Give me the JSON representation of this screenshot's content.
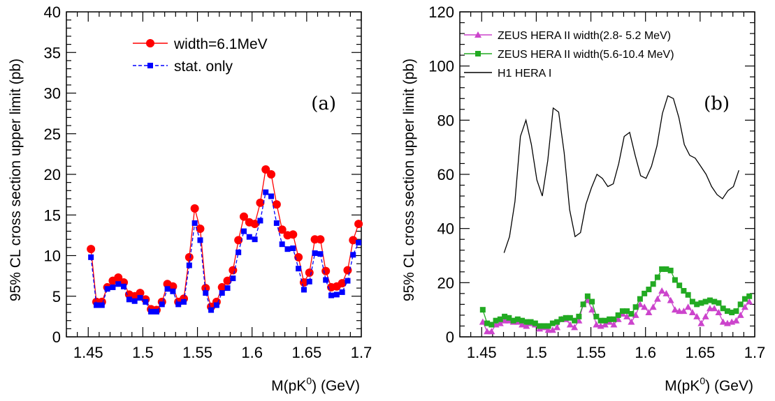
{
  "chart_data": [
    {
      "type": "line",
      "panel_label": "(a)",
      "xlabel_main": "M(pK",
      "xlabel_sup": "0",
      "xlabel_tail": ") (GeV)",
      "ylabel": "95% CL cross section upper limit (pb)",
      "xlim": [
        1.43,
        1.7
      ],
      "ylim": [
        0,
        40
      ],
      "xticks": [
        1.45,
        1.5,
        1.55,
        1.6,
        1.65,
        1.7
      ],
      "xtick_labels": [
        "1.45",
        "1.5",
        "1.55",
        "1.6",
        "1.65",
        "1.7"
      ],
      "yticks": [
        0,
        5,
        10,
        15,
        20,
        25,
        30,
        35,
        40
      ],
      "ytick_labels": [
        "0",
        "5",
        "10",
        "15",
        "20",
        "25",
        "30",
        "35",
        "40"
      ],
      "legend_position": "top-center",
      "series": [
        {
          "name": "width=6.1MeV",
          "color": "#ff0000",
          "marker": "circle",
          "line": "solid",
          "x": [
            1.4525,
            1.4575,
            1.4625,
            1.4675,
            1.4725,
            1.4775,
            1.4825,
            1.4875,
            1.4925,
            1.4975,
            1.5025,
            1.5075,
            1.5125,
            1.5175,
            1.5225,
            1.5275,
            1.5325,
            1.5375,
            1.5425,
            1.5475,
            1.5525,
            1.5575,
            1.5625,
            1.5675,
            1.5725,
            1.5775,
            1.5825,
            1.5875,
            1.5925,
            1.5975,
            1.6025,
            1.6075,
            1.6125,
            1.6175,
            1.6225,
            1.6275,
            1.6325,
            1.6375,
            1.6425,
            1.6475,
            1.6525,
            1.6575,
            1.6625,
            1.6675,
            1.6725,
            1.6775,
            1.6825,
            1.6875,
            1.6925,
            1.6975
          ],
          "y": [
            10.8,
            4.3,
            4.3,
            6.1,
            6.9,
            7.3,
            6.7,
            5.2,
            5.0,
            5.4,
            4.6,
            3.4,
            3.3,
            4.3,
            6.5,
            6.2,
            4.3,
            4.7,
            9.8,
            15.8,
            13.3,
            6.0,
            3.7,
            4.3,
            6.1,
            6.9,
            8.2,
            11.9,
            14.8,
            14.1,
            13.9,
            16.5,
            20.6,
            20.0,
            16.3,
            13.2,
            12.5,
            12.6,
            9.8,
            6.7,
            7.9,
            12.0,
            12.0,
            8.1,
            6.1,
            6.2,
            6.6,
            8.2,
            11.9,
            13.9
          ]
        },
        {
          "name": "stat. only",
          "color": "#0000ff",
          "marker": "square",
          "line": "dashed",
          "x": [
            1.4525,
            1.4575,
            1.4625,
            1.4675,
            1.4725,
            1.4775,
            1.4825,
            1.4875,
            1.4925,
            1.4975,
            1.5025,
            1.5075,
            1.5125,
            1.5175,
            1.5225,
            1.5275,
            1.5325,
            1.5375,
            1.5425,
            1.5475,
            1.5525,
            1.5575,
            1.5625,
            1.5675,
            1.5725,
            1.5775,
            1.5825,
            1.5875,
            1.5925,
            1.5975,
            1.6025,
            1.6075,
            1.6125,
            1.6175,
            1.6225,
            1.6275,
            1.6325,
            1.6375,
            1.6425,
            1.6475,
            1.6525,
            1.6575,
            1.6625,
            1.6675,
            1.6725,
            1.6775,
            1.6825,
            1.6875,
            1.6925,
            1.6975
          ],
          "y": [
            9.8,
            3.9,
            3.9,
            5.9,
            6.1,
            6.5,
            6.2,
            4.6,
            4.4,
            4.8,
            4.3,
            3.1,
            3.1,
            4.0,
            5.9,
            5.6,
            4.0,
            4.3,
            8.8,
            14.0,
            11.9,
            5.4,
            3.3,
            3.9,
            5.4,
            6.0,
            7.2,
            10.4,
            13.0,
            12.3,
            12.0,
            14.3,
            17.8,
            17.3,
            14.0,
            11.4,
            10.8,
            10.9,
            8.4,
            5.8,
            6.8,
            10.3,
            10.2,
            7.0,
            5.1,
            5.2,
            5.5,
            6.9,
            10.1,
            11.6
          ]
        }
      ]
    },
    {
      "type": "line",
      "panel_label": "(b)",
      "xlabel_main": "M(pK",
      "xlabel_sup": "0",
      "xlabel_tail": ") (GeV)",
      "ylabel": "95% CL cross section upper limit (pb)",
      "xlim": [
        1.43,
        1.7
      ],
      "ylim": [
        0,
        120
      ],
      "xticks": [
        1.45,
        1.5,
        1.55,
        1.6,
        1.65,
        1.7
      ],
      "xtick_labels": [
        "1.45",
        "1.5",
        "1.55",
        "1.6",
        "1.65",
        "1.7"
      ],
      "yticks": [
        0,
        20,
        40,
        60,
        80,
        100,
        120
      ],
      "ytick_labels": [
        "0",
        "20",
        "40",
        "60",
        "80",
        "100",
        "120"
      ],
      "legend_position": "top-left",
      "series": [
        {
          "name": "ZEUS HERA II width(2.8- 5.2 MeV)",
          "color": "#cc44cc",
          "marker": "triangle",
          "line": "solid",
          "x": [
            1.451,
            1.455,
            1.459,
            1.463,
            1.467,
            1.471,
            1.475,
            1.479,
            1.483,
            1.487,
            1.491,
            1.495,
            1.499,
            1.503,
            1.507,
            1.511,
            1.515,
            1.519,
            1.523,
            1.527,
            1.531,
            1.535,
            1.539,
            1.543,
            1.547,
            1.551,
            1.555,
            1.559,
            1.563,
            1.567,
            1.571,
            1.575,
            1.579,
            1.583,
            1.587,
            1.591,
            1.595,
            1.599,
            1.603,
            1.607,
            1.611,
            1.615,
            1.619,
            1.623,
            1.627,
            1.631,
            1.635,
            1.639,
            1.643,
            1.647,
            1.651,
            1.655,
            1.659,
            1.663,
            1.667,
            1.671,
            1.675,
            1.679,
            1.683,
            1.687,
            1.691,
            1.695
          ],
          "y": [
            5.5,
            2.0,
            2.0,
            4.5,
            5.0,
            6.0,
            6.0,
            5.5,
            5.5,
            4.5,
            4.0,
            5.0,
            4.5,
            3.0,
            3.5,
            2.5,
            2.5,
            3.5,
            6.5,
            6.5,
            4.5,
            3.5,
            6.0,
            12.0,
            13.5,
            10.0,
            4.5,
            4.0,
            4.5,
            5.5,
            4.5,
            6.5,
            8.5,
            7.5,
            5.5,
            8.0,
            12.0,
            11.0,
            9.0,
            11.0,
            14.0,
            17.0,
            16.0,
            13.5,
            10.0,
            9.5,
            9.5,
            11.0,
            9.0,
            7.5,
            5.0,
            7.5,
            10.5,
            10.5,
            9.0,
            5.5,
            5.0,
            5.5,
            6.0,
            8.0,
            11.0,
            13.0
          ]
        },
        {
          "name": "ZEUS HERA II width(5.6-10.4 MeV)",
          "color": "#22aa22",
          "marker": "square",
          "line": "solid",
          "x": [
            1.451,
            1.455,
            1.459,
            1.463,
            1.467,
            1.471,
            1.475,
            1.479,
            1.483,
            1.487,
            1.491,
            1.495,
            1.499,
            1.503,
            1.507,
            1.511,
            1.515,
            1.519,
            1.523,
            1.527,
            1.531,
            1.535,
            1.539,
            1.543,
            1.547,
            1.551,
            1.555,
            1.559,
            1.563,
            1.567,
            1.571,
            1.575,
            1.579,
            1.583,
            1.587,
            1.591,
            1.595,
            1.599,
            1.603,
            1.607,
            1.611,
            1.615,
            1.619,
            1.623,
            1.627,
            1.631,
            1.635,
            1.639,
            1.643,
            1.647,
            1.651,
            1.655,
            1.659,
            1.663,
            1.667,
            1.671,
            1.675,
            1.679,
            1.683,
            1.687,
            1.691,
            1.695
          ],
          "y": [
            10.0,
            5.0,
            4.5,
            6.0,
            6.5,
            7.5,
            7.0,
            6.0,
            6.5,
            6.0,
            5.5,
            5.5,
            5.0,
            4.0,
            4.0,
            4.0,
            5.0,
            5.5,
            6.5,
            7.0,
            7.0,
            6.0,
            7.5,
            12.0,
            15.0,
            13.0,
            7.5,
            6.0,
            6.0,
            6.5,
            6.5,
            8.0,
            9.5,
            9.5,
            8.5,
            11.0,
            14.0,
            16.0,
            17.5,
            19.5,
            22.0,
            25.0,
            25.0,
            24.5,
            21.0,
            19.0,
            17.0,
            15.5,
            13.0,
            12.0,
            12.5,
            13.0,
            13.5,
            13.0,
            12.5,
            10.5,
            9.5,
            9.0,
            9.5,
            12.0,
            14.0,
            15.0
          ]
        },
        {
          "name": "H1 HERA I",
          "color": "#000000",
          "marker": "none",
          "line": "solid",
          "x": [
            1.4705,
            1.4755,
            1.4805,
            1.4855,
            1.4905,
            1.4955,
            1.5005,
            1.5055,
            1.5105,
            1.5155,
            1.5205,
            1.5255,
            1.5305,
            1.5355,
            1.5405,
            1.5455,
            1.5505,
            1.5555,
            1.5605,
            1.5655,
            1.5705,
            1.5755,
            1.5805,
            1.5855,
            1.5905,
            1.5955,
            1.6005,
            1.6055,
            1.6105,
            1.6155,
            1.6205,
            1.6255,
            1.6305,
            1.6355,
            1.6405,
            1.6455,
            1.6505,
            1.6555,
            1.6605,
            1.6655,
            1.6705,
            1.6755,
            1.6805,
            1.6855
          ],
          "y": [
            31,
            37,
            50,
            74,
            80,
            71,
            58,
            52,
            65,
            84.5,
            83,
            68,
            47,
            37,
            38.5,
            49,
            55,
            60,
            58.5,
            55.5,
            56.5,
            64,
            74,
            75.5,
            67,
            59.5,
            58.5,
            63,
            70.5,
            82.5,
            89,
            88,
            81,
            71,
            67,
            66,
            63,
            60,
            55.5,
            52.5,
            51,
            54,
            55.5,
            61.5
          ]
        }
      ]
    }
  ]
}
